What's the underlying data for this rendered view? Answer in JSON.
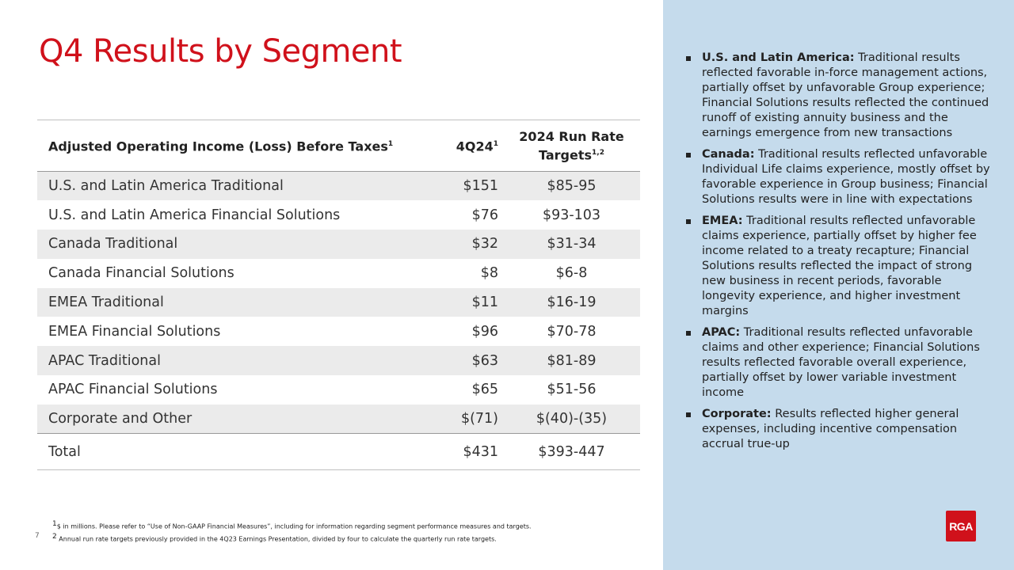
{
  "slide": {
    "title": "Q4 Results by Segment",
    "page_number": "7"
  },
  "table": {
    "headers": {
      "segment": "Adjusted Operating Income (Loss) Before Taxes",
      "segment_sup": "1",
      "quarter": "4Q24",
      "quarter_sup": "1",
      "target": "2024 Run Rate Targets",
      "target_sup": "1,2"
    },
    "rows": [
      {
        "segment": "U.S. and Latin America Traditional",
        "quarter": "$151",
        "target": "$85-95"
      },
      {
        "segment": "U.S. and Latin America Financial Solutions",
        "quarter": "$76",
        "target": "$93-103"
      },
      {
        "segment": "Canada Traditional",
        "quarter": "$32",
        "target": "$31-34"
      },
      {
        "segment": "Canada Financial Solutions",
        "quarter": "$8",
        "target": "$6-8"
      },
      {
        "segment": "EMEA Traditional",
        "quarter": "$11",
        "target": "$16-19"
      },
      {
        "segment": "EMEA Financial Solutions",
        "quarter": "$96",
        "target": "$70-78"
      },
      {
        "segment": "APAC Traditional",
        "quarter": "$63",
        "target": "$81-89"
      },
      {
        "segment": "APAC Financial Solutions",
        "quarter": "$65",
        "target": "$51-56"
      },
      {
        "segment": "Corporate and Other",
        "quarter": "$(71)",
        "target": "$(40)-(35)"
      }
    ],
    "total": {
      "segment": "Total",
      "quarter": "$431",
      "target": "$393-447"
    }
  },
  "commentary": [
    {
      "label": "U.S. and Latin America:",
      "text": " Traditional results reflected favorable in-force management actions, partially offset by unfavorable Group experience; Financial Solutions results reflected the continued runoff of existing annuity business and the earnings emergence from new transactions"
    },
    {
      "label": "Canada:",
      "text": " Traditional results reflected unfavorable Individual Life claims experience, mostly offset by favorable experience in Group business; Financial Solutions results were in line with expectations"
    },
    {
      "label": "EMEA:",
      "text": " Traditional results reflected unfavorable claims experience, partially offset by higher fee income related to a treaty recapture; Financial Solutions results reflected the impact of strong new business in recent periods, favorable longevity experience, and higher investment margins"
    },
    {
      "label": "APAC:",
      "text": " Traditional results reflected unfavorable claims and other experience; Financial Solutions results reflected favorable overall experience, partially offset by lower variable investment income"
    },
    {
      "label": "Corporate:",
      "text": " Results reflected higher general expenses, including incentive compensation accrual true-up"
    }
  ],
  "footnotes": [
    {
      "marker": "1",
      "text": "$ in millions. Please refer to “Use of Non-GAAP Financial Measures”, including for information regarding segment performance measures and targets."
    },
    {
      "marker": "2",
      "text": " Annual run rate targets previously provided in the 4Q23 Earnings Presentation, divided by four to calculate the quarterly run rate targets."
    }
  ],
  "logo": {
    "text": "RGA",
    "color": "#d0111b"
  },
  "colors": {
    "accent": "#d0111b",
    "panel": "#c5dbec",
    "row_shade": "#ebebeb"
  }
}
